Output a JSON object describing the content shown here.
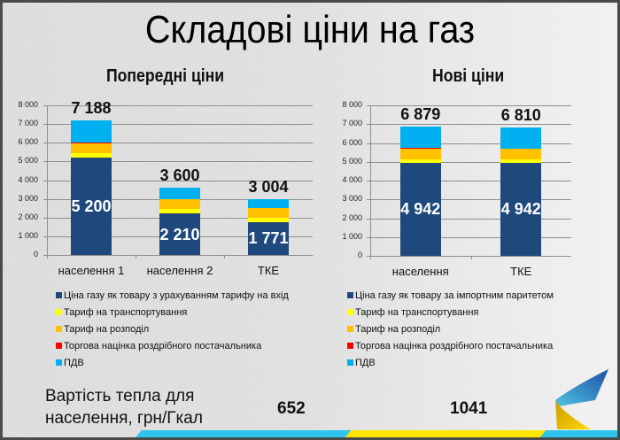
{
  "title": "Складові ціни на газ",
  "left_chart": {
    "subtitle": "Попередні ціни",
    "yticks": [
      "8 000",
      "7 000",
      "6 000",
      "5 000",
      "4 000",
      "3 000",
      "2 000",
      "1 000",
      "0"
    ],
    "categories": [
      "населення 1",
      "населення 2",
      "ТКЕ"
    ],
    "totals": [
      "7 188",
      "3 600",
      "3 004"
    ],
    "inner_labels": [
      "5 200",
      "2 210",
      "1 771"
    ],
    "legend": [
      "Ціна газу як товару з урахуванням тарифу на вхід",
      "Тариф на транспортування",
      "Тариф на розподіл",
      "Торгова націнка роздрібного постачальника",
      "ПДВ"
    ]
  },
  "right_chart": {
    "subtitle": "Нові ціни",
    "yticks": [
      "8 000",
      "7 000",
      "6 000",
      "5 000",
      "4 000",
      "3 000",
      "2 000",
      "1 000",
      "0"
    ],
    "categories": [
      "населення",
      "ТКЕ"
    ],
    "totals": [
      "6 879",
      "6 810"
    ],
    "inner_labels": [
      "4 942",
      "4 942"
    ],
    "legend": [
      "Ціна газу як товару за імпортним паритетом",
      "Тариф на транспортування",
      "Тариф на розподіл",
      "Торгова націнка роздрібного постачальника",
      "ПДВ"
    ]
  },
  "bottom": {
    "label_line1": "Вартість тепла для",
    "label_line2": "населення, грн/Гкал",
    "value_old": "652",
    "value_new": "1041"
  },
  "colors": {
    "gas": "#1f497d",
    "transport": "#ffff00",
    "distribution": "#ffc000",
    "margin": "#ff0000",
    "vat": "#00b0f0"
  },
  "chart_data": [
    {
      "type": "bar",
      "stacked": true,
      "title": "Попередні ціни",
      "categories": [
        "населення 1",
        "населення 2",
        "ТКЕ"
      ],
      "series": [
        {
          "name": "Ціна газу як товару з урахуванням тарифу на вхід",
          "values": [
            5200,
            2210,
            1771
          ]
        },
        {
          "name": "Тариф на транспортування",
          "values": [
            250,
            230,
            230
          ]
        },
        {
          "name": "Тариф на розподіл",
          "values": [
            500,
            520,
            500
          ]
        },
        {
          "name": "Торгова націнка роздрібного постачальника",
          "values": [
            40,
            40,
            0
          ]
        },
        {
          "name": "ПДВ",
          "values": [
            1198,
            600,
            503
          ]
        }
      ],
      "totals": [
        7188,
        3600,
        3004
      ],
      "xlabel": "",
      "ylabel": "",
      "ylim": [
        0,
        8000
      ],
      "grid": true,
      "legend_position": "bottom"
    },
    {
      "type": "bar",
      "stacked": true,
      "title": "Нові ціни",
      "categories": [
        "населення",
        "ТКЕ"
      ],
      "series": [
        {
          "name": "Ціна газу як товару за імпортним паритетом",
          "values": [
            4942,
            4942
          ]
        },
        {
          "name": "Тариф на транспортування",
          "values": [
            190,
            190
          ]
        },
        {
          "name": "Тариф на розподіл",
          "values": [
            550,
            540
          ]
        },
        {
          "name": "Торгова націнка роздрібного постачальника",
          "values": [
            50,
            0
          ]
        },
        {
          "name": "ПДВ",
          "values": [
            1147,
            1138
          ]
        }
      ],
      "totals": [
        6879,
        6810
      ],
      "xlabel": "",
      "ylabel": "",
      "ylim": [
        0,
        8000
      ],
      "grid": true,
      "legend_position": "bottom"
    },
    {
      "type": "table",
      "title": "Вартість тепла для населення, грн/Гкал",
      "columns": [
        "Попередні ціни",
        "Нові ціни"
      ],
      "values": [
        652,
        1041
      ]
    }
  ]
}
